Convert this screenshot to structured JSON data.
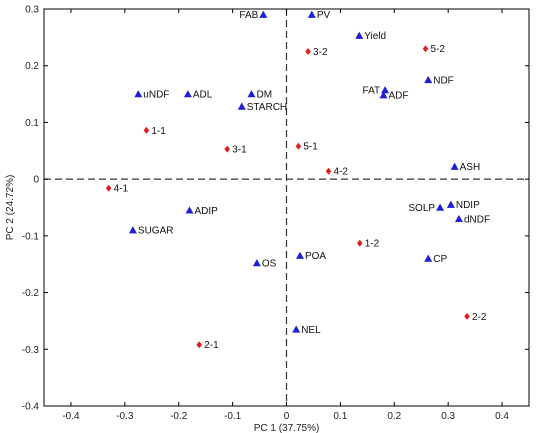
{
  "chart_data": {
    "type": "scatter",
    "xlabel": "PC 1 (37.75%)",
    "ylabel": "PC 2 (24.72%)",
    "xlim": [
      -0.45,
      0.45
    ],
    "ylim": [
      -0.4,
      0.3
    ],
    "xticks": [
      "-0.4",
      "-0.3",
      "-0.2",
      "-0.1",
      "0",
      "0.1",
      "0.2",
      "0.3",
      "0.4"
    ],
    "yticks": [
      "0.3",
      "0.2",
      "0.1",
      "0",
      "-0.1",
      "-0.2",
      "-0.3",
      "-0.4"
    ],
    "reference_lines": "dashed lines at x = 0 and y = 0",
    "grid": false,
    "series": [
      {
        "marker": "triangle",
        "color": "#1f1fd6",
        "points": [
          {
            "label": "FAB",
            "x": -0.043,
            "y": 0.29
          },
          {
            "label": "PV",
            "x": 0.047,
            "y": 0.29
          },
          {
            "label": "Yield",
            "x": 0.135,
            "y": 0.253
          },
          {
            "label": "NDF",
            "x": 0.263,
            "y": 0.175
          },
          {
            "label": "uNDF",
            "x": -0.275,
            "y": 0.15
          },
          {
            "label": "ADL",
            "x": -0.183,
            "y": 0.15
          },
          {
            "label": "DM",
            "x": -0.065,
            "y": 0.15
          },
          {
            "label": "STARCH",
            "x": -0.083,
            "y": 0.128
          },
          {
            "label": "FAT",
            "x": 0.183,
            "y": 0.157
          },
          {
            "label": "ADF",
            "x": 0.18,
            "y": 0.148
          },
          {
            "label": "ASH",
            "x": 0.312,
            "y": 0.022
          },
          {
            "label": "ADIP",
            "x": -0.18,
            "y": -0.055
          },
          {
            "label": "SUGAR",
            "x": -0.285,
            "y": -0.09
          },
          {
            "label": "NDIP",
            "x": 0.305,
            "y": -0.045
          },
          {
            "label": "SOLP",
            "x": 0.285,
            "y": -0.05
          },
          {
            "label": "dNDF",
            "x": 0.32,
            "y": -0.07
          },
          {
            "label": "POA",
            "x": 0.025,
            "y": -0.135
          },
          {
            "label": "OS",
            "x": -0.055,
            "y": -0.148
          },
          {
            "label": "CP",
            "x": 0.263,
            "y": -0.14
          },
          {
            "label": "NEL",
            "x": 0.018,
            "y": -0.265
          }
        ]
      },
      {
        "marker": "diamond",
        "color": "#e0201c",
        "points": [
          {
            "label": "3-2",
            "x": 0.04,
            "y": 0.225
          },
          {
            "label": "5-2",
            "x": 0.258,
            "y": 0.23
          },
          {
            "label": "1-1",
            "x": -0.26,
            "y": 0.086
          },
          {
            "label": "3-1",
            "x": -0.11,
            "y": 0.053
          },
          {
            "label": "5-1",
            "x": 0.022,
            "y": 0.058
          },
          {
            "label": "4-2",
            "x": 0.078,
            "y": 0.014
          },
          {
            "label": "4-1",
            "x": -0.33,
            "y": -0.016
          },
          {
            "label": "1-2",
            "x": 0.136,
            "y": -0.113
          },
          {
            "label": "2-2",
            "x": 0.335,
            "y": -0.242
          },
          {
            "label": "2-1",
            "x": -0.162,
            "y": -0.292
          }
        ]
      }
    ]
  }
}
